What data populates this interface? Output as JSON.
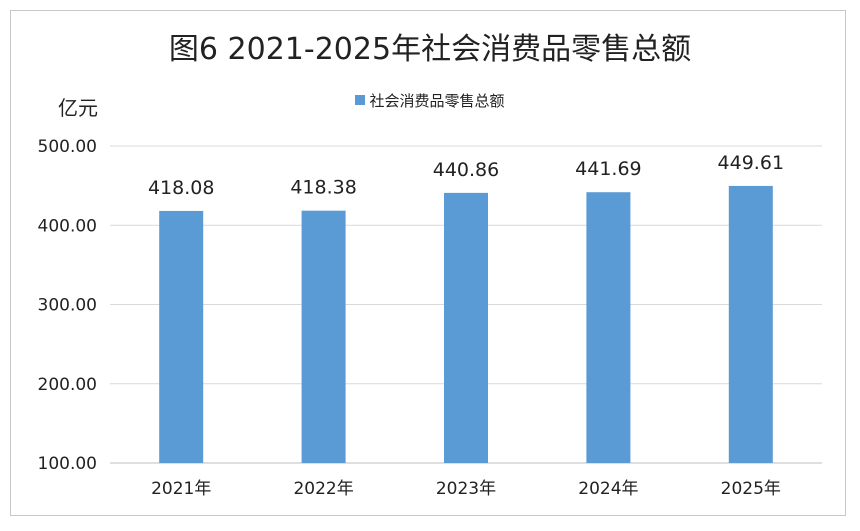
{
  "chart_data": {
    "type": "bar",
    "title": "图6  2021-2025年社会消费品零售总额",
    "ylabel": "亿元",
    "xlabel": "",
    "categories": [
      "2021年",
      "2022年",
      "2023年",
      "2024年",
      "2025年"
    ],
    "series": [
      {
        "name": "社会消费品零售总额",
        "values": [
          418.08,
          418.38,
          440.86,
          441.69,
          449.61
        ],
        "color": "#5b9bd5"
      }
    ],
    "data_labels": [
      "418.08",
      "418.38",
      "440.86",
      "441.69",
      "449.61"
    ],
    "ylim": [
      100,
      500
    ],
    "yticks": [
      "100.00",
      "200.00",
      "300.00",
      "400.00",
      "500.00"
    ],
    "grid": true,
    "legend_position": "top"
  }
}
